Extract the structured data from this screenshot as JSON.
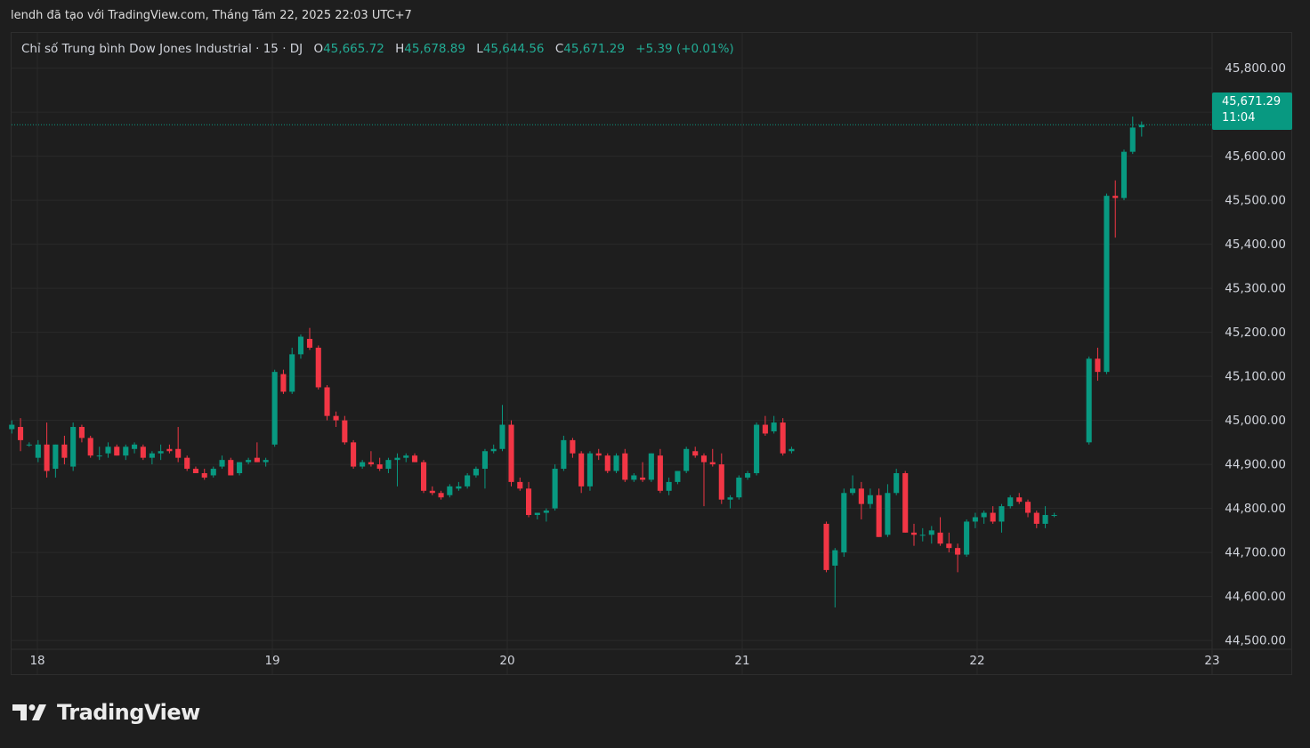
{
  "header": {
    "attribution": "lendh đã tạo với TradingView.com, Tháng Tám 22, 2025 22:03 UTC+7"
  },
  "legend": {
    "symbol": "Chỉ số Trung bình Dow Jones Industrial · 15 · DJ",
    "o_label": "O",
    "o_value": "45,665.72",
    "h_label": "H",
    "h_value": "45,678.89",
    "l_label": "L",
    "l_value": "45,644.56",
    "c_label": "C",
    "c_value": "45,671.29",
    "change": "+5.39 (+0.01%)"
  },
  "price_tag": {
    "price": "45,671.29",
    "countdown": "11:04"
  },
  "footer": {
    "logo_text": "TradingView"
  },
  "colors": {
    "background": "#1e1e1e",
    "grid": "#2a2a2a",
    "up": "#089981",
    "down": "#f23645",
    "text": "#d1d4dc",
    "legend_value": "#22ab94"
  },
  "chart_data": {
    "type": "candlestick",
    "title": "Chỉ số Trung bình Dow Jones Industrial · 15 · DJ",
    "interval": "15",
    "last_price": 45671.29,
    "ylim": [
      44480,
      45880
    ],
    "y_ticks": [
      44500,
      44600,
      44700,
      44800,
      44900,
      45000,
      45100,
      45200,
      45300,
      45400,
      45500,
      45600,
      45700,
      45800
    ],
    "y_tick_labels": [
      "44,500.00",
      "44,600.00",
      "44,700.00",
      "44,800.00",
      "44,900.00",
      "45,000.00",
      "45,100.00",
      "45,200.00",
      "45,300.00",
      "45,400.00",
      "45,500.00",
      "45,600.00",
      "45,700.00",
      "45,800.00"
    ],
    "x_ticks": [
      17.88,
      18.88,
      19.88,
      20.88,
      21.88,
      22.88
    ],
    "x_tick_labels": [
      "18",
      "19",
      "20",
      "21",
      "22",
      "23"
    ],
    "xlim": [
      17.77,
      22.88
    ],
    "grid": true,
    "candles": [
      {
        "t": 17.771,
        "o": 44980,
        "h": 45000,
        "l": 44970,
        "c": 44990
      },
      {
        "t": 17.808,
        "o": 44985,
        "h": 45005,
        "l": 44930,
        "c": 44955
      },
      {
        "t": 17.845,
        "o": 44945,
        "h": 44950,
        "l": 44940,
        "c": 44945
      },
      {
        "t": 17.883,
        "o": 44915,
        "h": 44955,
        "l": 44905,
        "c": 44945
      },
      {
        "t": 17.92,
        "o": 44945,
        "h": 44995,
        "l": 44870,
        "c": 44885
      },
      {
        "t": 17.957,
        "o": 44890,
        "h": 44945,
        "l": 44870,
        "c": 44945
      },
      {
        "t": 17.995,
        "o": 44945,
        "h": 44965,
        "l": 44900,
        "c": 44915
      },
      {
        "t": 18.032,
        "o": 44895,
        "h": 44995,
        "l": 44885,
        "c": 44985
      },
      {
        "t": 18.069,
        "o": 44985,
        "h": 44990,
        "l": 44950,
        "c": 44960
      },
      {
        "t": 18.106,
        "o": 44960,
        "h": 44965,
        "l": 44915,
        "c": 44920
      },
      {
        "t": 18.144,
        "o": 44920,
        "h": 44940,
        "l": 44910,
        "c": 44920
      },
      {
        "t": 18.181,
        "o": 44925,
        "h": 44950,
        "l": 44915,
        "c": 44940
      },
      {
        "t": 18.218,
        "o": 44940,
        "h": 44945,
        "l": 44920,
        "c": 44920
      },
      {
        "t": 18.256,
        "o": 44920,
        "h": 44945,
        "l": 44910,
        "c": 44940
      },
      {
        "t": 18.293,
        "o": 44935,
        "h": 44950,
        "l": 44925,
        "c": 44945
      },
      {
        "t": 18.33,
        "o": 44940,
        "h": 44945,
        "l": 44910,
        "c": 44915
      },
      {
        "t": 18.368,
        "o": 44915,
        "h": 44930,
        "l": 44900,
        "c": 44925
      },
      {
        "t": 18.405,
        "o": 44925,
        "h": 44945,
        "l": 44910,
        "c": 44930
      },
      {
        "t": 18.442,
        "o": 44935,
        "h": 44945,
        "l": 44925,
        "c": 44930
      },
      {
        "t": 18.479,
        "o": 44935,
        "h": 44985,
        "l": 44905,
        "c": 44915
      },
      {
        "t": 18.517,
        "o": 44915,
        "h": 44920,
        "l": 44885,
        "c": 44890
      },
      {
        "t": 18.554,
        "o": 44890,
        "h": 44895,
        "l": 44880,
        "c": 44880
      },
      {
        "t": 18.591,
        "o": 44880,
        "h": 44890,
        "l": 44865,
        "c": 44870
      },
      {
        "t": 18.629,
        "o": 44875,
        "h": 44895,
        "l": 44870,
        "c": 44890
      },
      {
        "t": 18.666,
        "o": 44895,
        "h": 44920,
        "l": 44890,
        "c": 44910
      },
      {
        "t": 18.703,
        "o": 44910,
        "h": 44915,
        "l": 44875,
        "c": 44875
      },
      {
        "t": 18.74,
        "o": 44880,
        "h": 44905,
        "l": 44875,
        "c": 44905
      },
      {
        "t": 18.778,
        "o": 44905,
        "h": 44915,
        "l": 44900,
        "c": 44910
      },
      {
        "t": 18.815,
        "o": 44915,
        "h": 44950,
        "l": 44905,
        "c": 44905
      },
      {
        "t": 18.852,
        "o": 44905,
        "h": 44915,
        "l": 44895,
        "c": 44910
      },
      {
        "t": 18.89,
        "o": 44945,
        "h": 45115,
        "l": 44940,
        "c": 45110
      },
      {
        "t": 18.927,
        "o": 45105,
        "h": 45115,
        "l": 45060,
        "c": 45065
      },
      {
        "t": 18.964,
        "o": 45065,
        "h": 45165,
        "l": 45060,
        "c": 45150
      },
      {
        "t": 19.001,
        "o": 45150,
        "h": 45195,
        "l": 45140,
        "c": 45190
      },
      {
        "t": 19.039,
        "o": 45185,
        "h": 45210,
        "l": 45160,
        "c": 45165
      },
      {
        "t": 19.076,
        "o": 45165,
        "h": 45170,
        "l": 45070,
        "c": 45075
      },
      {
        "t": 19.113,
        "o": 45075,
        "h": 45080,
        "l": 45000,
        "c": 45010
      },
      {
        "t": 19.151,
        "o": 45010,
        "h": 45020,
        "l": 44985,
        "c": 45000
      },
      {
        "t": 19.188,
        "o": 45000,
        "h": 45010,
        "l": 44945,
        "c": 44950
      },
      {
        "t": 19.225,
        "o": 44950,
        "h": 44955,
        "l": 44890,
        "c": 44895
      },
      {
        "t": 19.263,
        "o": 44895,
        "h": 44910,
        "l": 44890,
        "c": 44905
      },
      {
        "t": 19.3,
        "o": 44905,
        "h": 44930,
        "l": 44895,
        "c": 44900
      },
      {
        "t": 19.337,
        "o": 44900,
        "h": 44915,
        "l": 44885,
        "c": 44890
      },
      {
        "t": 19.374,
        "o": 44890,
        "h": 44915,
        "l": 44880,
        "c": 44910
      },
      {
        "t": 19.412,
        "o": 44910,
        "h": 44925,
        "l": 44850,
        "c": 44915
      },
      {
        "t": 19.449,
        "o": 44915,
        "h": 44925,
        "l": 44905,
        "c": 44920
      },
      {
        "t": 19.486,
        "o": 44920,
        "h": 44925,
        "l": 44905,
        "c": 44905
      },
      {
        "t": 19.524,
        "o": 44905,
        "h": 44910,
        "l": 44835,
        "c": 44840
      },
      {
        "t": 19.561,
        "o": 44840,
        "h": 44850,
        "l": 44830,
        "c": 44835
      },
      {
        "t": 19.598,
        "o": 44835,
        "h": 44840,
        "l": 44820,
        "c": 44825
      },
      {
        "t": 19.635,
        "o": 44830,
        "h": 44855,
        "l": 44825,
        "c": 44850
      },
      {
        "t": 19.673,
        "o": 44845,
        "h": 44860,
        "l": 44840,
        "c": 44850
      },
      {
        "t": 19.71,
        "o": 44850,
        "h": 44880,
        "l": 44845,
        "c": 44875
      },
      {
        "t": 19.747,
        "o": 44875,
        "h": 44895,
        "l": 44870,
        "c": 44890
      },
      {
        "t": 19.785,
        "o": 44890,
        "h": 44935,
        "l": 44845,
        "c": 44930
      },
      {
        "t": 19.822,
        "o": 44930,
        "h": 44945,
        "l": 44925,
        "c": 44935
      },
      {
        "t": 19.859,
        "o": 44935,
        "h": 45035,
        "l": 44930,
        "c": 44990
      },
      {
        "t": 19.897,
        "o": 44990,
        "h": 45000,
        "l": 44850,
        "c": 44860
      },
      {
        "t": 19.934,
        "o": 44860,
        "h": 44870,
        "l": 44840,
        "c": 44845
      },
      {
        "t": 19.971,
        "o": 44845,
        "h": 44860,
        "l": 44780,
        "c": 44785
      },
      {
        "t": 20.008,
        "o": 44785,
        "h": 44790,
        "l": 44775,
        "c": 44790
      },
      {
        "t": 20.046,
        "o": 44790,
        "h": 44800,
        "l": 44770,
        "c": 44795
      },
      {
        "t": 20.083,
        "o": 44800,
        "h": 44900,
        "l": 44795,
        "c": 44890
      },
      {
        "t": 20.12,
        "o": 44890,
        "h": 44965,
        "l": 44885,
        "c": 44955
      },
      {
        "t": 20.158,
        "o": 44955,
        "h": 44960,
        "l": 44915,
        "c": 44925
      },
      {
        "t": 20.195,
        "o": 44925,
        "h": 44930,
        "l": 44835,
        "c": 44850
      },
      {
        "t": 20.232,
        "o": 44850,
        "h": 44930,
        "l": 44840,
        "c": 44925
      },
      {
        "t": 20.269,
        "o": 44925,
        "h": 44935,
        "l": 44910,
        "c": 44920
      },
      {
        "t": 20.307,
        "o": 44920,
        "h": 44925,
        "l": 44880,
        "c": 44885
      },
      {
        "t": 20.344,
        "o": 44885,
        "h": 44925,
        "l": 44880,
        "c": 44920
      },
      {
        "t": 20.381,
        "o": 44925,
        "h": 44935,
        "l": 44860,
        "c": 44865
      },
      {
        "t": 20.419,
        "o": 44865,
        "h": 44880,
        "l": 44860,
        "c": 44875
      },
      {
        "t": 20.456,
        "o": 44870,
        "h": 44905,
        "l": 44860,
        "c": 44865
      },
      {
        "t": 20.493,
        "o": 44865,
        "h": 44925,
        "l": 44860,
        "c": 44925
      },
      {
        "t": 20.531,
        "o": 44920,
        "h": 44935,
        "l": 44835,
        "c": 44840
      },
      {
        "t": 20.568,
        "o": 44840,
        "h": 44870,
        "l": 44830,
        "c": 44860
      },
      {
        "t": 20.605,
        "o": 44860,
        "h": 44885,
        "l": 44855,
        "c": 44885
      },
      {
        "t": 20.642,
        "o": 44885,
        "h": 44940,
        "l": 44880,
        "c": 44935
      },
      {
        "t": 20.68,
        "o": 44930,
        "h": 44940,
        "l": 44915,
        "c": 44920
      },
      {
        "t": 20.717,
        "o": 44920,
        "h": 44925,
        "l": 44805,
        "c": 44905
      },
      {
        "t": 20.754,
        "o": 44905,
        "h": 44935,
        "l": 44895,
        "c": 44900
      },
      {
        "t": 20.792,
        "o": 44900,
        "h": 44925,
        "l": 44810,
        "c": 44820
      },
      {
        "t": 20.829,
        "o": 44820,
        "h": 44830,
        "l": 44800,
        "c": 44825
      },
      {
        "t": 20.866,
        "o": 44825,
        "h": 44875,
        "l": 44820,
        "c": 44870
      },
      {
        "t": 20.903,
        "o": 44870,
        "h": 44885,
        "l": 44865,
        "c": 44880
      },
      {
        "t": 20.941,
        "o": 44880,
        "h": 44995,
        "l": 44875,
        "c": 44990
      },
      {
        "t": 20.978,
        "o": 44990,
        "h": 45010,
        "l": 44965,
        "c": 44970
      },
      {
        "t": 21.015,
        "o": 44975,
        "h": 45010,
        "l": 44970,
        "c": 44995
      },
      {
        "t": 21.053,
        "o": 44995,
        "h": 45005,
        "l": 44920,
        "c": 44925
      },
      {
        "t": 21.09,
        "o": 44930,
        "h": 44940,
        "l": 44925,
        "c": 44935
      },
      {
        "t": 21.238,
        "o": 44765,
        "h": 44770,
        "l": 44655,
        "c": 44660
      },
      {
        "t": 21.275,
        "o": 44670,
        "h": 44710,
        "l": 44575,
        "c": 44705
      },
      {
        "t": 21.313,
        "o": 44700,
        "h": 44845,
        "l": 44690,
        "c": 44835
      },
      {
        "t": 21.35,
        "o": 44835,
        "h": 44875,
        "l": 44830,
        "c": 44845
      },
      {
        "t": 21.387,
        "o": 44845,
        "h": 44860,
        "l": 44775,
        "c": 44810
      },
      {
        "t": 21.425,
        "o": 44810,
        "h": 44845,
        "l": 44800,
        "c": 44830
      },
      {
        "t": 21.462,
        "o": 44830,
        "h": 44845,
        "l": 44735,
        "c": 44735
      },
      {
        "t": 21.499,
        "o": 44740,
        "h": 44855,
        "l": 44735,
        "c": 44835
      },
      {
        "t": 21.536,
        "o": 44835,
        "h": 44890,
        "l": 44830,
        "c": 44880
      },
      {
        "t": 21.574,
        "o": 44880,
        "h": 44885,
        "l": 44745,
        "c": 44745
      },
      {
        "t": 21.611,
        "o": 44745,
        "h": 44765,
        "l": 44715,
        "c": 44740
      },
      {
        "t": 21.648,
        "o": 44740,
        "h": 44755,
        "l": 44725,
        "c": 44740
      },
      {
        "t": 21.686,
        "o": 44740,
        "h": 44760,
        "l": 44720,
        "c": 44750
      },
      {
        "t": 21.723,
        "o": 44745,
        "h": 44780,
        "l": 44715,
        "c": 44720
      },
      {
        "t": 21.76,
        "o": 44720,
        "h": 44745,
        "l": 44700,
        "c": 44710
      },
      {
        "t": 21.797,
        "o": 44710,
        "h": 44720,
        "l": 44655,
        "c": 44695
      },
      {
        "t": 21.835,
        "o": 44695,
        "h": 44775,
        "l": 44690,
        "c": 44770
      },
      {
        "t": 21.872,
        "o": 44770,
        "h": 44790,
        "l": 44755,
        "c": 44780
      },
      {
        "t": 21.909,
        "o": 44780,
        "h": 44795,
        "l": 44765,
        "c": 44790
      },
      {
        "t": 21.947,
        "o": 44790,
        "h": 44805,
        "l": 44765,
        "c": 44770
      },
      {
        "t": 21.984,
        "o": 44770,
        "h": 44810,
        "l": 44745,
        "c": 44805
      },
      {
        "t": 22.021,
        "o": 44805,
        "h": 44830,
        "l": 44800,
        "c": 44825
      },
      {
        "t": 22.059,
        "o": 44825,
        "h": 44835,
        "l": 44810,
        "c": 44815
      },
      {
        "t": 22.096,
        "o": 44815,
        "h": 44820,
        "l": 44780,
        "c": 44790
      },
      {
        "t": 22.133,
        "o": 44790,
        "h": 44795,
        "l": 44755,
        "c": 44765
      },
      {
        "t": 22.17,
        "o": 44765,
        "h": 44805,
        "l": 44755,
        "c": 44785
      },
      {
        "t": 22.208,
        "o": 44785,
        "h": 44790,
        "l": 44780,
        "c": 44785
      },
      {
        "t": 22.356,
        "o": 44950,
        "h": 45145,
        "l": 44945,
        "c": 45140
      },
      {
        "t": 22.393,
        "o": 45140,
        "h": 45165,
        "l": 45090,
        "c": 45110
      },
      {
        "t": 22.431,
        "o": 45110,
        "h": 45515,
        "l": 45105,
        "c": 45510
      },
      {
        "t": 22.468,
        "o": 45510,
        "h": 45545,
        "l": 45415,
        "c": 45505
      },
      {
        "t": 22.505,
        "o": 45505,
        "h": 45615,
        "l": 45500,
        "c": 45610
      },
      {
        "t": 22.542,
        "o": 45610,
        "h": 45690,
        "l": 45605,
        "c": 45665
      },
      {
        "t": 22.58,
        "o": 45665.72,
        "h": 45678.89,
        "l": 45644.56,
        "c": 45671.29
      }
    ]
  }
}
